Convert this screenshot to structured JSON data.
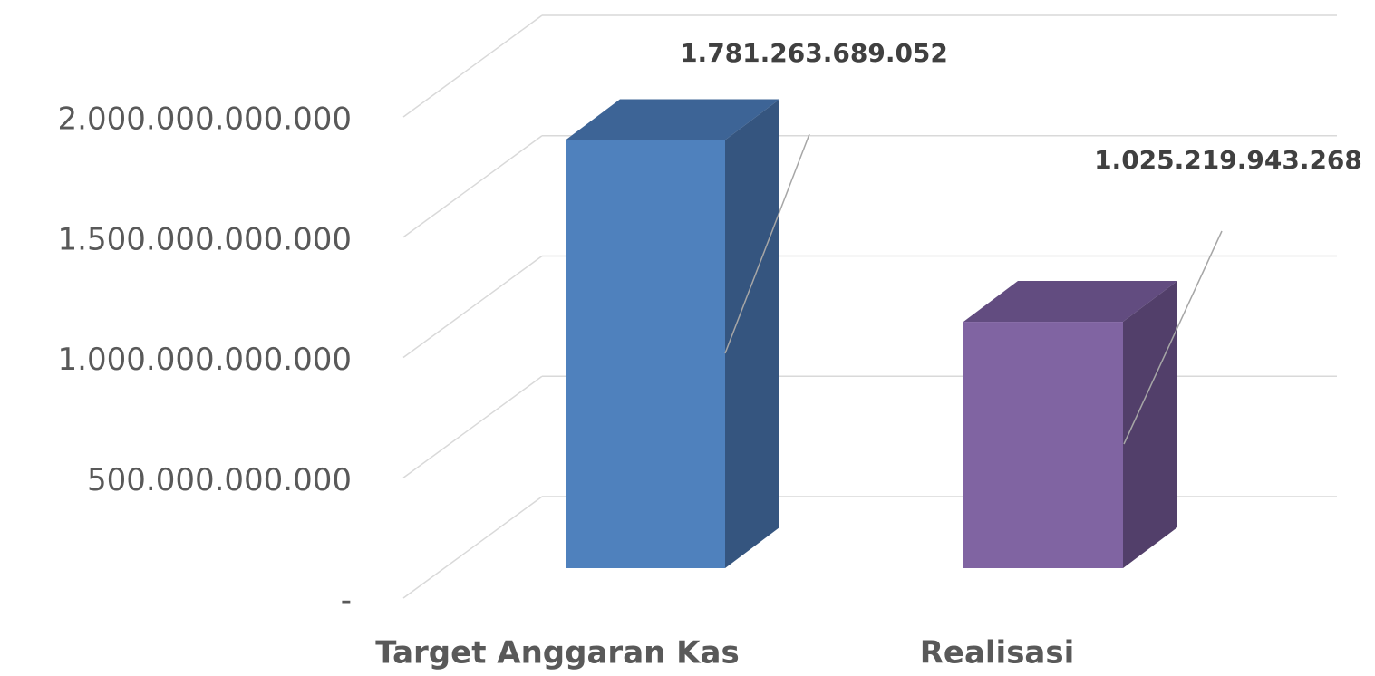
{
  "chart_data": {
    "type": "bar3d",
    "categories": [
      "Target Anggaran Kas",
      "Realisasi"
    ],
    "values": [
      1781263689052,
      1025219943268
    ],
    "value_labels": [
      "1.781.263.689.052",
      "1.025.219.943.268"
    ],
    "colors": [
      {
        "front": "#4f81bd",
        "top": "#3d6496",
        "side": "#35557f"
      },
      {
        "front": "#8064a2",
        "top": "#624c80",
        "side": "#523f6a"
      }
    ],
    "ylim": [
      0,
      2000000000000
    ],
    "yticks": [
      {
        "value": 0,
        "label": "-"
      },
      {
        "value": 500000000000,
        "label": "500.000.000.000"
      },
      {
        "value": 1000000000000,
        "label": "1.000.000.000.000"
      },
      {
        "value": 1500000000000,
        "label": "1.500.000.000.000"
      },
      {
        "value": 2000000000000,
        "label": "2.000.000.000.000"
      }
    ],
    "grid": true
  }
}
